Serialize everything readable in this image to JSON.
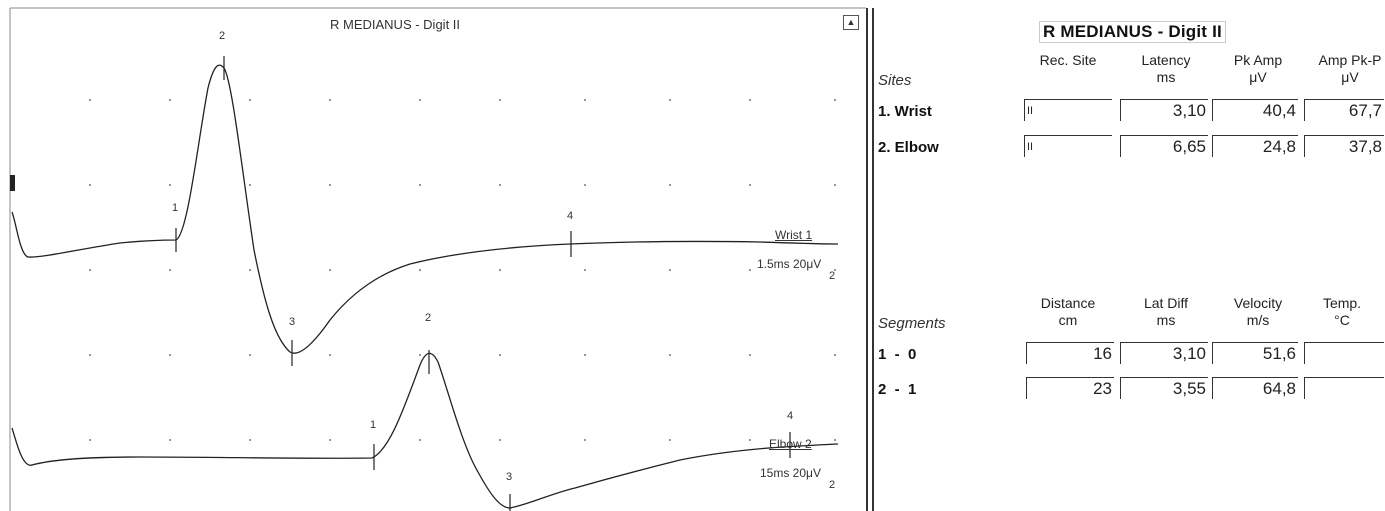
{
  "waveform_panel": {
    "title": "R MEDIANUS - Digit II",
    "scroll_glyph": "▲",
    "traces": [
      {
        "label": "Wrist 1",
        "setting": "1.5ms 20μV",
        "sub": "2",
        "markers": [
          "1",
          "2",
          "3",
          "4"
        ]
      },
      {
        "label": "Elbow 2",
        "setting": "15ms 20μV",
        "sub": "2",
        "markers": [
          "1",
          "2",
          "3",
          "4"
        ]
      }
    ]
  },
  "report": {
    "title": "R MEDIANUS - Digit II",
    "sites_section": "Sites",
    "site_columns": [
      {
        "line1": "Rec. Site",
        "line2": ""
      },
      {
        "line1": "Latency",
        "line2": "ms"
      },
      {
        "line1": "Pk Amp",
        "line2": "μV"
      },
      {
        "line1": "Amp Pk-P",
        "line2": "μV"
      }
    ],
    "sites": [
      {
        "name": "1. Wrist",
        "rec_site": "II",
        "latency": "3,10",
        "pk_amp": "40,4",
        "amp_pkpk": "67,7"
      },
      {
        "name": "2. Elbow",
        "rec_site": "II",
        "latency": "6,65",
        "pk_amp": "24,8",
        "amp_pkpk": "37,8"
      }
    ],
    "segments_section": "Segments",
    "segment_columns": [
      {
        "line1": "Distance",
        "line2": "cm"
      },
      {
        "line1": "Lat Diff",
        "line2": "ms"
      },
      {
        "line1": "Velocity",
        "line2": "m/s"
      },
      {
        "line1": "Temp.",
        "line2": "°C"
      }
    ],
    "segments": [
      {
        "name": "1  -  0",
        "distance": "16",
        "lat_diff": "3,10",
        "velocity": "51,6",
        "temp": ""
      },
      {
        "name": "2  -  1",
        "distance": "23",
        "lat_diff": "3,55",
        "velocity": "64,8",
        "temp": ""
      }
    ]
  }
}
